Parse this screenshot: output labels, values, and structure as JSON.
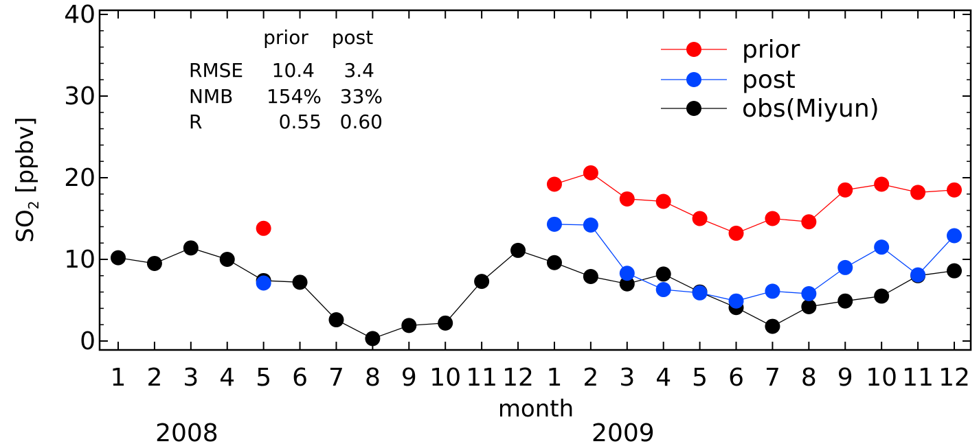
{
  "chart_data": {
    "type": "line",
    "title": "",
    "xlabel": "month",
    "ylabel_main": "SO",
    "ylabel_sub": "2",
    "ylabel_unit": " [ppbv]",
    "ylim": [
      0,
      40
    ],
    "yticks": [
      0,
      10,
      20,
      30,
      40
    ],
    "x": [
      1,
      2,
      3,
      4,
      5,
      6,
      7,
      8,
      9,
      10,
      11,
      12,
      13,
      14,
      15,
      16,
      17,
      18,
      19,
      20,
      21,
      22,
      23,
      24
    ],
    "xtick_labels": [
      "1",
      "2",
      "3",
      "4",
      "5",
      "6",
      "7",
      "8",
      "9",
      "10",
      "11",
      "12",
      "1",
      "2",
      "3",
      "4",
      "5",
      "6",
      "7",
      "8",
      "9",
      "10",
      "11",
      "12"
    ],
    "year_labels": [
      {
        "label": "2008",
        "month_index": 2
      },
      {
        "label": "2009",
        "month_index": 14
      }
    ],
    "grid": false,
    "legend_position": "top-right",
    "series": [
      {
        "name": "prior",
        "color": "#ff0000",
        "values": [
          null,
          null,
          null,
          null,
          13.8,
          null,
          null,
          null,
          null,
          null,
          null,
          null,
          19.2,
          20.6,
          17.4,
          17.1,
          15.0,
          13.2,
          15.0,
          14.6,
          18.5,
          19.2,
          18.2,
          18.5
        ]
      },
      {
        "name": "post",
        "color": "#0044ff",
        "values": [
          null,
          null,
          null,
          null,
          7.1,
          null,
          null,
          null,
          null,
          null,
          null,
          null,
          14.3,
          14.2,
          8.3,
          6.3,
          5.9,
          4.9,
          6.1,
          5.8,
          9.0,
          11.5,
          8.1,
          12.9
        ]
      },
      {
        "name": "obs(Miyun)",
        "color": "#000000",
        "values": [
          10.2,
          9.5,
          11.4,
          10.0,
          7.4,
          7.2,
          2.6,
          0.3,
          1.9,
          2.2,
          7.3,
          11.1,
          9.6,
          7.9,
          7.0,
          8.2,
          6.0,
          4.1,
          1.8,
          4.2,
          4.9,
          5.5,
          8.0,
          8.6
        ]
      }
    ],
    "stats_table": {
      "header": [
        "prior",
        "post"
      ],
      "rows": [
        {
          "label": "RMSE",
          "prior": "10.4",
          "post": "3.4"
        },
        {
          "label": "NMB",
          "prior": "154%",
          "post": "33%"
        },
        {
          "label": "R",
          "prior": "0.55",
          "post": "0.60"
        }
      ]
    }
  }
}
